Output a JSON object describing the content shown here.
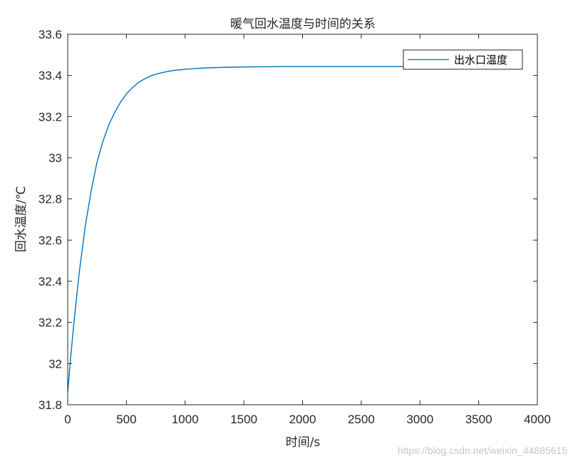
{
  "chart_data": {
    "type": "line",
    "title": "暖气回水温度与时间的关系",
    "xlabel": "时间/s",
    "ylabel": "回水温度/℃",
    "xlim": [
      0,
      4000
    ],
    "ylim": [
      31.8,
      33.6
    ],
    "x_ticks": [
      0,
      500,
      1000,
      1500,
      2000,
      2500,
      3000,
      3500,
      4000
    ],
    "x_tick_labels": [
      "0",
      "500",
      "1000",
      "1500",
      "2000",
      "2500",
      "3000",
      "3500",
      "4000"
    ],
    "y_ticks": [
      31.8,
      32,
      32.2,
      32.4,
      32.6,
      32.8,
      33,
      33.2,
      33.4,
      33.6
    ],
    "y_tick_labels": [
      "31.8",
      "32",
      "32.2",
      "32.4",
      "32.6",
      "32.8",
      "33",
      "33.2",
      "33.4",
      "33.6"
    ],
    "grid": false,
    "legend_position": "top-right",
    "series": [
      {
        "name": "出水口温度",
        "color": "#0072BD",
        "x": [
          0,
          25,
          50,
          75,
          100,
          150,
          200,
          250,
          300,
          350,
          400,
          450,
          500,
          550,
          600,
          650,
          700,
          750,
          800,
          850,
          900,
          950,
          1000,
          1100,
          1200,
          1300,
          1400,
          1500,
          1600,
          1700,
          1800,
          2000,
          2200,
          2400,
          2600,
          2800,
          2900
        ],
        "y": [
          31.86,
          32.03,
          32.18,
          32.32,
          32.45,
          32.67,
          32.84,
          32.98,
          33.08,
          33.16,
          33.22,
          33.27,
          33.31,
          33.34,
          33.365,
          33.382,
          33.396,
          33.406,
          33.413,
          33.419,
          33.424,
          33.427,
          33.43,
          33.434,
          33.437,
          33.439,
          33.44,
          33.441,
          33.442,
          33.442,
          33.443,
          33.443,
          33.443,
          33.443,
          33.443,
          33.443,
          33.443
        ]
      }
    ]
  },
  "watermark": "https://blog.csdn.net/weixin_44885615"
}
